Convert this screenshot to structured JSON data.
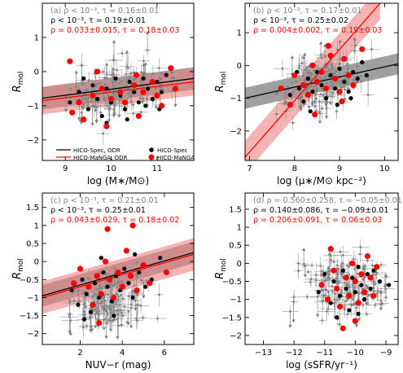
{
  "colors": {
    "all": "#808080",
    "spec": "#000000",
    "manga": "#ff0000",
    "spec_band": "#7f7f7f",
    "manga_band": "#f08080",
    "error_bar": "#9a9a9a"
  },
  "legend": {
    "spec_odr": "HICO-Spec, ODR",
    "manga_odr": "HICO-MaNGA, ODR",
    "spec": "HICO-Spec",
    "manga": "HICO-MaNGA"
  },
  "chart_data": [
    {
      "panel": "(a)",
      "type": "scatter",
      "xlabel": "log (M∗/M⊙)",
      "ylabel": "Rmol",
      "xlim": [
        8.5,
        11.8
      ],
      "ylim": [
        -2.6,
        2.0
      ],
      "xticks": [
        9,
        10,
        11
      ],
      "yticks": [
        -2,
        -1,
        0,
        1
      ],
      "annotations": [
        {
          "color": "gray",
          "text": "(a) ρ < 10⁻³, τ = 0.16±0.01"
        },
        {
          "color": "black",
          "text": "ρ < 10⁻³, τ = 0.19±0.01"
        },
        {
          "color": "red",
          "text": "ρ = 0.033±0.015, τ = 0.18±0.03"
        }
      ],
      "fits": [
        {
          "name": "HICO-Spec, ODR",
          "color": "spec",
          "x": [
            8.5,
            11.8
          ],
          "y": [
            -0.78,
            -0.2
          ],
          "band": 0.33
        },
        {
          "name": "HICO-MaNGA, ODR",
          "color": "manga",
          "x": [
            8.5,
            11.8
          ],
          "y": [
            -0.85,
            -0.3
          ],
          "band": 0.4
        }
      ],
      "cloud": {
        "x_center": 10.1,
        "x_sd": 0.55,
        "x_min": 8.9,
        "x_max": 11.4,
        "slope": 0.2,
        "intercept": -0.55,
        "y_sd": 0.4
      },
      "series": [
        {
          "name": "HICO-Spec",
          "points": [
            [
              9.1,
              -0.9
            ],
            [
              9.3,
              -0.6
            ],
            [
              9.5,
              -1.1
            ],
            [
              9.6,
              -0.4
            ],
            [
              9.7,
              -0.8
            ],
            [
              9.8,
              -1.3
            ],
            [
              9.9,
              -0.5
            ],
            [
              10.0,
              -0.9
            ],
            [
              10.1,
              -0.2
            ],
            [
              10.2,
              -0.7
            ],
            [
              10.3,
              -1.1
            ],
            [
              10.4,
              -0.3
            ],
            [
              10.5,
              -0.6
            ],
            [
              10.6,
              -0.9
            ],
            [
              10.7,
              -0.2
            ],
            [
              10.8,
              -0.5
            ],
            [
              10.9,
              -0.8
            ],
            [
              11.0,
              -0.3
            ],
            [
              11.1,
              -0.6
            ],
            [
              11.2,
              -0.1
            ],
            [
              9.4,
              -0.2
            ],
            [
              9.9,
              -1.5
            ],
            [
              10.35,
              -1.4
            ],
            [
              10.75,
              -1.0
            ],
            [
              11.05,
              -1.1
            ]
          ]
        },
        {
          "name": "HICO-MaNGA",
          "points": [
            [
              9.1,
              0.3
            ],
            [
              9.3,
              -0.9
            ],
            [
              9.4,
              -1.4
            ],
            [
              9.6,
              -0.7
            ],
            [
              9.8,
              -0.5
            ],
            [
              10.0,
              -0.8
            ],
            [
              10.2,
              -0.6
            ],
            [
              10.3,
              -0.9
            ],
            [
              10.5,
              -0.4
            ],
            [
              10.6,
              -1.3
            ],
            [
              10.7,
              -0.6
            ],
            [
              10.9,
              -0.3
            ],
            [
              11.0,
              -0.7
            ],
            [
              11.3,
              0.1
            ],
            [
              11.4,
              -0.5
            ],
            [
              9.7,
              0.0
            ],
            [
              9.15,
              -1.2
            ],
            [
              9.9,
              -1.6
            ],
            [
              10.55,
              -0.1
            ],
            [
              11.1,
              -1.0
            ]
          ]
        }
      ]
    },
    {
      "panel": "(b)",
      "type": "scatter",
      "xlabel": "log (μ∗/M⊙ kpc⁻²)",
      "ylabel": "Rmol",
      "xlim": [
        6.9,
        10.3
      ],
      "ylim": [
        -2.9,
        1.9
      ],
      "xticks": [
        7,
        8,
        9,
        10
      ],
      "yticks": [
        -2,
        -1,
        0,
        1
      ],
      "annotations": [
        {
          "color": "gray",
          "text": "(b) ρ < 10⁻³, τ = 0.17±0.01"
        },
        {
          "color": "black",
          "text": "ρ < 10⁻³, τ = 0.25±0.02"
        },
        {
          "color": "red",
          "text": "ρ = 0.004±0.002, τ = 0.19±0.03"
        }
      ],
      "fits": [
        {
          "name": "HICO-Spec, ODR",
          "color": "spec",
          "x": [
            6.9,
            10.3
          ],
          "y": [
            -1.0,
            0.05
          ],
          "band": 0.32
        },
        {
          "name": "HICO-MaNGA, ODR",
          "color": "manga",
          "x": [
            6.9,
            9.9
          ],
          "y": [
            -2.8,
            1.9
          ],
          "band": 0.5
        }
      ],
      "cloud": {
        "x_center": 8.6,
        "x_sd": 0.45,
        "x_min": 7.6,
        "x_max": 9.8,
        "slope": 0.35,
        "intercept": -0.5,
        "y_sd": 0.4
      },
      "series": [
        {
          "name": "HICO-Spec",
          "points": [
            [
              7.9,
              -0.9
            ],
            [
              8.1,
              -0.7
            ],
            [
              8.2,
              -1.1
            ],
            [
              8.3,
              -0.4
            ],
            [
              8.4,
              -0.8
            ],
            [
              8.5,
              -0.2
            ],
            [
              8.6,
              -0.6
            ],
            [
              8.7,
              -1.0
            ],
            [
              8.8,
              -0.3
            ],
            [
              8.9,
              -0.7
            ],
            [
              9.0,
              -0.1
            ],
            [
              9.1,
              -0.5
            ],
            [
              9.2,
              -0.8
            ],
            [
              9.3,
              -0.2
            ],
            [
              9.4,
              -0.4
            ],
            [
              9.5,
              0.1
            ],
            [
              9.6,
              -0.3
            ],
            [
              8.35,
              -1.4
            ],
            [
              8.95,
              -1.2
            ],
            [
              9.25,
              -1.0
            ],
            [
              8.05,
              -0.2
            ]
          ]
        },
        {
          "name": "HICO-MaNGA",
          "points": [
            [
              7.7,
              -0.7
            ],
            [
              7.9,
              -1.2
            ],
            [
              8.0,
              -0.3
            ],
            [
              8.2,
              -0.6
            ],
            [
              8.3,
              -0.9
            ],
            [
              8.4,
              0.0
            ],
            [
              8.5,
              -0.5
            ],
            [
              8.6,
              -0.2
            ],
            [
              8.7,
              -0.7
            ],
            [
              8.8,
              0.3
            ],
            [
              8.9,
              -0.4
            ],
            [
              9.0,
              -0.8
            ],
            [
              9.1,
              0.2
            ],
            [
              9.2,
              -0.3
            ],
            [
              9.3,
              -0.6
            ],
            [
              9.5,
              0.5
            ],
            [
              8.45,
              -1.5
            ],
            [
              8.75,
              0.6
            ],
            [
              9.05,
              -1.1
            ]
          ]
        }
      ]
    },
    {
      "panel": "(c)",
      "type": "scatter",
      "xlabel": "NUV−r (mag)",
      "ylabel": "Rmol",
      "xlim": [
        0.2,
        7.4
      ],
      "ylim": [
        -2.3,
        1.9
      ],
      "xticks": [
        2,
        4,
        6
      ],
      "yticks": [
        -2.0,
        -1.5,
        -1.0,
        -0.5,
        0.0,
        0.5,
        1.0,
        1.5
      ],
      "annotations": [
        {
          "color": "gray",
          "text": "(c) ρ < 10⁻³, τ = 0.21±0.01"
        },
        {
          "color": "black",
          "text": "ρ < 10⁻³, τ = 0.25±0.01"
        },
        {
          "color": "red",
          "text": "ρ = 0.043±0.029, τ = 0.18±0.02"
        }
      ],
      "fits": [
        {
          "name": "HICO-Spec, ODR",
          "color": "spec",
          "x": [
            0.2,
            7.4
          ],
          "y": [
            -0.95,
            0.25
          ],
          "band": 0.3
        },
        {
          "name": "HICO-MaNGA, ODR",
          "color": "manga",
          "x": [
            0.2,
            7.4
          ],
          "y": [
            -1.0,
            0.2
          ],
          "band": 0.45
        }
      ],
      "cloud": {
        "x_center": 3.4,
        "x_sd": 0.9,
        "x_min": 1.5,
        "x_max": 6.2,
        "slope": 0.15,
        "intercept": -1.05,
        "y_sd": 0.38
      },
      "series": [
        {
          "name": "HICO-Spec",
          "points": [
            [
              1.6,
              -0.8
            ],
            [
              1.9,
              -1.2
            ],
            [
              2.1,
              -0.5
            ],
            [
              2.3,
              -0.9
            ],
            [
              2.5,
              -1.4
            ],
            [
              2.7,
              -0.6
            ],
            [
              2.9,
              -1.0
            ],
            [
              3.1,
              -0.3
            ],
            [
              3.3,
              -0.7
            ],
            [
              3.5,
              -1.1
            ],
            [
              3.7,
              -0.4
            ],
            [
              3.9,
              -0.8
            ],
            [
              4.1,
              -0.2
            ],
            [
              4.3,
              -0.6
            ],
            [
              4.5,
              -1.0
            ],
            [
              4.8,
              -0.3
            ],
            [
              5.1,
              -0.7
            ],
            [
              5.4,
              -0.5
            ],
            [
              5.8,
              0.1
            ],
            [
              2.2,
              -1.6
            ],
            [
              3.6,
              -1.5
            ],
            [
              4.6,
              0.2
            ],
            [
              3.0,
              0.1
            ]
          ]
        },
        {
          "name": "HICO-MaNGA",
          "points": [
            [
              1.7,
              -0.6
            ],
            [
              2.0,
              -0.2
            ],
            [
              2.4,
              -0.7
            ],
            [
              2.6,
              -1.2
            ],
            [
              2.8,
              -0.4
            ],
            [
              3.0,
              -0.9
            ],
            [
              3.2,
              0.0
            ],
            [
              3.4,
              -0.5
            ],
            [
              3.6,
              -1.0
            ],
            [
              3.8,
              -0.3
            ],
            [
              4.0,
              -0.7
            ],
            [
              4.2,
              0.3
            ],
            [
              4.4,
              -0.4
            ],
            [
              4.7,
              -0.8
            ],
            [
              5.0,
              -0.1
            ],
            [
              5.3,
              -0.6
            ],
            [
              3.3,
              0.9
            ],
            [
              4.5,
              1.0
            ],
            [
              2.9,
              -1.7
            ],
            [
              6.1,
              -0.3
            ]
          ]
        }
      ]
    },
    {
      "panel": "(d)",
      "type": "scatter",
      "xlabel": "log (sSFR/yr⁻¹)",
      "ylabel": "Rmol",
      "xlim": [
        -13.6,
        -8.6
      ],
      "ylim": [
        -2.25,
        1.95
      ],
      "xticks": [
        -13,
        -12,
        -11,
        -10,
        -9
      ],
      "yticks": [
        -2.0,
        -1.5,
        -1.0,
        -0.5,
        0.0,
        0.5,
        1.0,
        1.5
      ],
      "annotations": [
        {
          "color": "gray",
          "text": "(d) ρ = 0.560±0.258, τ = −0.05±0.01"
        },
        {
          "color": "black",
          "text": "ρ = 0.140±0.086, τ = −0.09±0.01"
        },
        {
          "color": "red",
          "text": "ρ = 0.206±0.091, τ = 0.06±0.03"
        }
      ],
      "fits": [],
      "cloud": {
        "x_center": -10.3,
        "x_sd": 0.7,
        "x_min": -13.0,
        "x_max": -9.0,
        "slope": 0.0,
        "intercept": -0.65,
        "y_sd": 0.42
      },
      "series": [
        {
          "name": "HICO-Spec",
          "points": [
            [
              -11.2,
              -0.8
            ],
            [
              -11.0,
              -0.3
            ],
            [
              -10.8,
              -1.1
            ],
            [
              -10.7,
              -0.5
            ],
            [
              -10.5,
              -0.9
            ],
            [
              -10.4,
              -0.2
            ],
            [
              -10.3,
              -0.7
            ],
            [
              -10.2,
              -1.3
            ],
            [
              -10.1,
              -0.4
            ],
            [
              -10.0,
              -0.8
            ],
            [
              -9.9,
              -0.1
            ],
            [
              -9.8,
              -0.6
            ],
            [
              -9.7,
              -1.0
            ],
            [
              -9.6,
              -0.3
            ],
            [
              -9.5,
              -0.7
            ],
            [
              -9.4,
              -0.2
            ],
            [
              -9.2,
              -0.5
            ],
            [
              -8.9,
              -0.6
            ],
            [
              -10.6,
              -1.5
            ],
            [
              -9.9,
              -1.4
            ]
          ]
        },
        {
          "name": "HICO-MaNGA",
          "points": [
            [
              -11.1,
              -0.6
            ],
            [
              -10.9,
              -1.0
            ],
            [
              -10.7,
              -0.2
            ],
            [
              -10.6,
              -0.7
            ],
            [
              -10.5,
              -1.2
            ],
            [
              -10.3,
              -0.4
            ],
            [
              -10.2,
              -0.9
            ],
            [
              -10.1,
              0.0
            ],
            [
              -10.0,
              -0.5
            ],
            [
              -9.9,
              -1.1
            ],
            [
              -9.8,
              -0.3
            ],
            [
              -9.7,
              -0.8
            ],
            [
              -9.6,
              0.2
            ],
            [
              -9.5,
              -0.4
            ],
            [
              -9.4,
              -0.9
            ],
            [
              -10.4,
              -1.8
            ],
            [
              -10.8,
              0.4
            ],
            [
              -9.3,
              -0.1
            ],
            [
              -10.0,
              -1.6
            ]
          ]
        }
      ]
    }
  ]
}
